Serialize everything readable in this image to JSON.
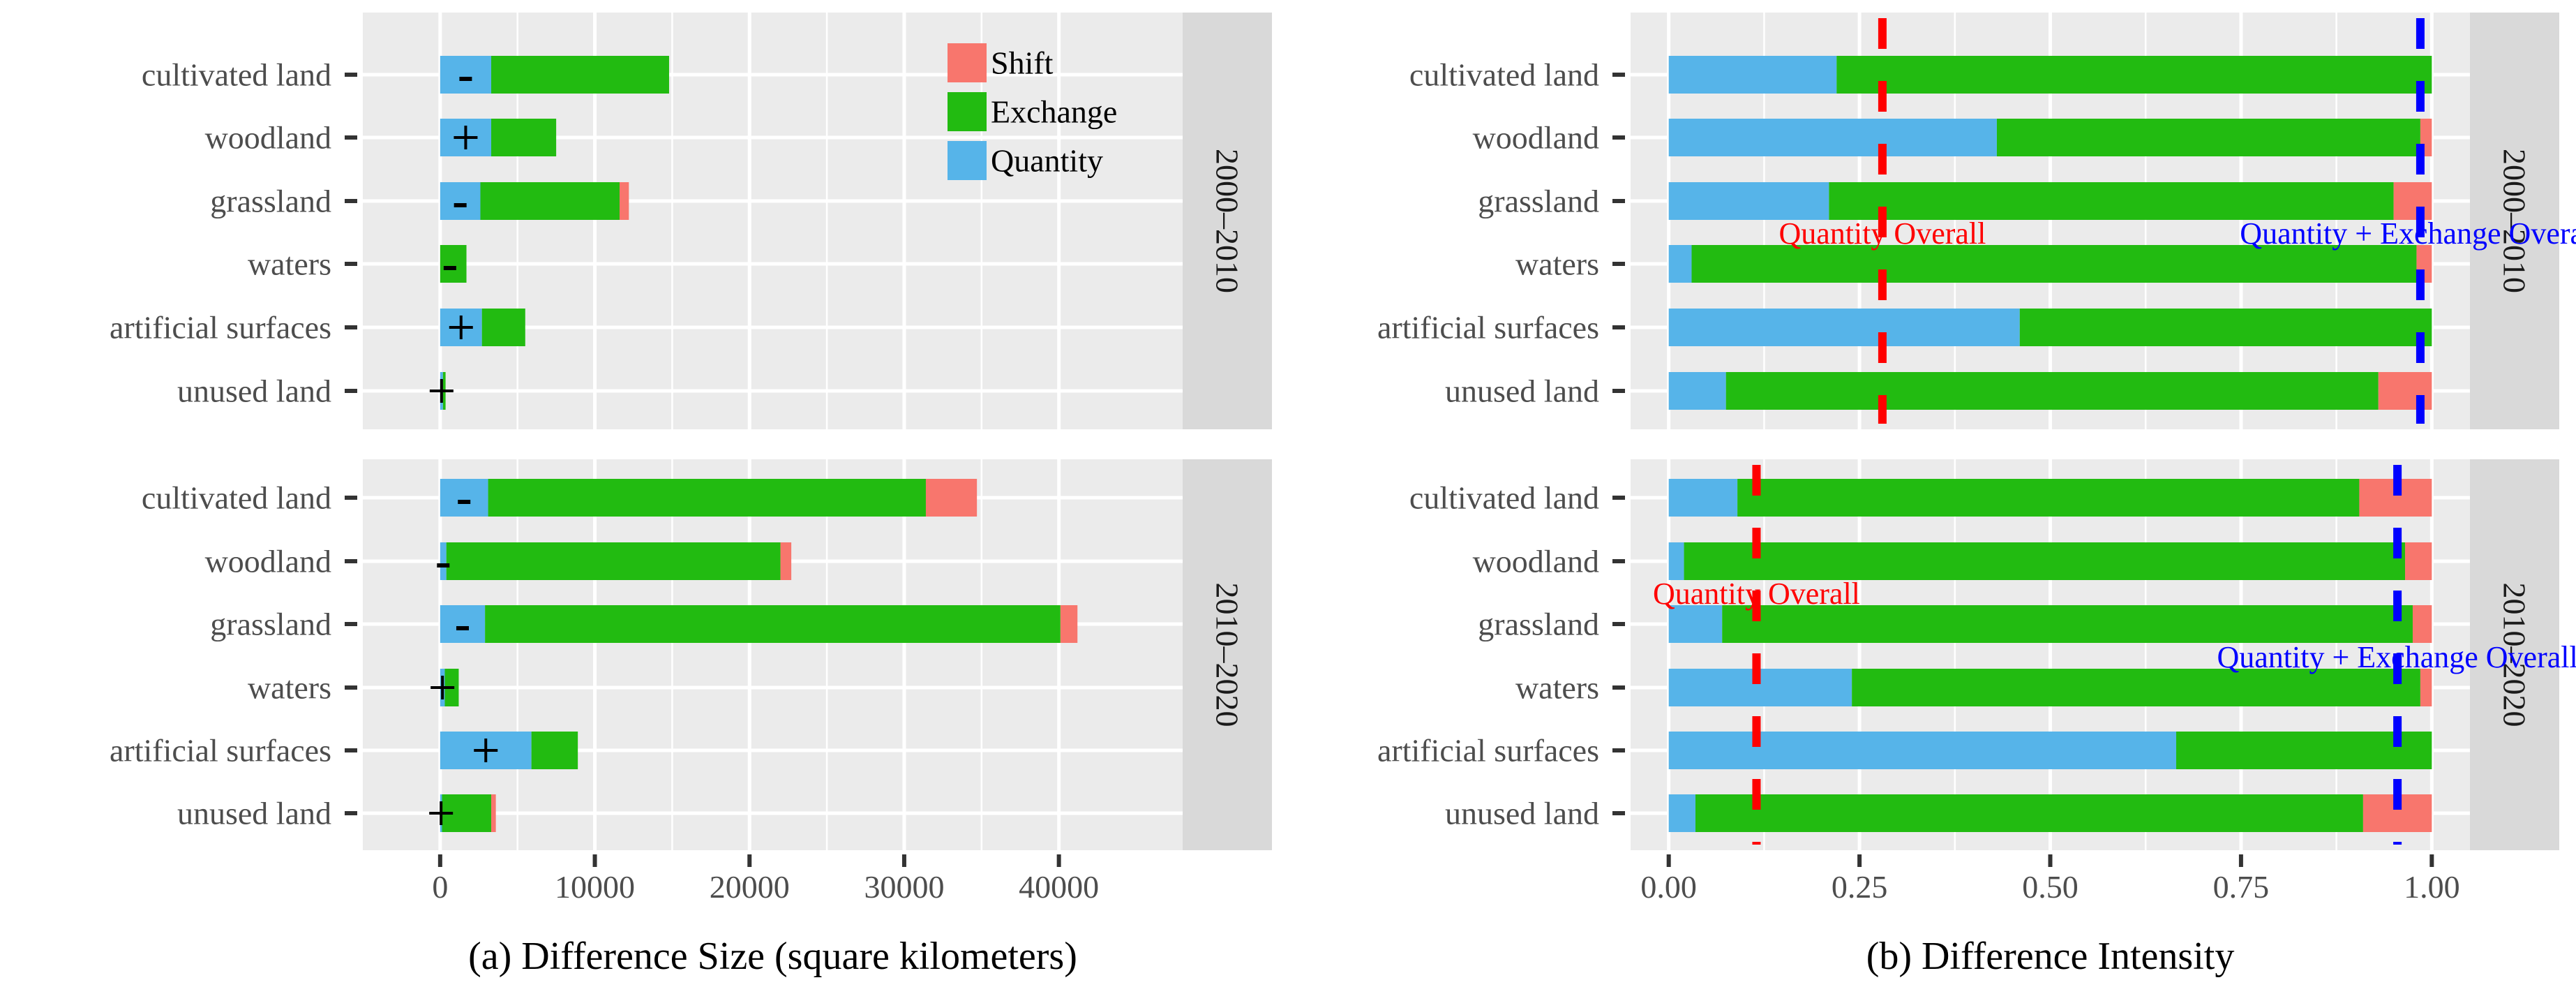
{
  "colors": {
    "shift": "#F8766D",
    "exchange": "#22BB11",
    "quantity": "#56B4E9",
    "panel_bg": "#EBEBEB",
    "grid": "#FFFFFF",
    "strip_bg": "#D9D9D9",
    "text": "#4D4D4D",
    "quantity_overall": "#FF0000",
    "qe_overall": "#0000FF"
  },
  "chart_data": [
    {
      "id": "a",
      "type": "bar",
      "orientation": "horizontal",
      "stacked": true,
      "xlabel": "(a) Difference Size (square kilometers)",
      "xlim": [
        -5000,
        48000
      ],
      "xticks": [
        0,
        10000,
        20000,
        30000,
        40000
      ],
      "xtick_labels": [
        "0",
        "10000",
        "20000",
        "30000",
        "40000"
      ],
      "legend": {
        "position": "top-right",
        "entries": [
          {
            "key": "shift",
            "label": "Shift"
          },
          {
            "key": "exchange",
            "label": "Exchange"
          },
          {
            "key": "quantity",
            "label": "Quantity"
          }
        ]
      },
      "categories": [
        "cultivated land",
        "woodland",
        "grassland",
        "waters",
        "artificial surfaces",
        "unused land"
      ],
      "facets": [
        {
          "label": "2000–2010",
          "series": [
            {
              "name": "Quantity",
              "values": [
                3300,
                3300,
                2600,
                0,
                2700,
                180
              ]
            },
            {
              "name": "Exchange",
              "values": [
                11500,
                4200,
                9000,
                1700,
                2800,
                170
              ]
            },
            {
              "name": "Shift",
              "values": [
                0,
                0,
                600,
                0,
                0,
                0
              ]
            }
          ],
          "signs": [
            "-",
            "+",
            "-",
            "-",
            "+",
            "+"
          ]
        },
        {
          "label": "2010–2020",
          "series": [
            {
              "name": "Quantity",
              "values": [
                3100,
                400,
                2900,
                300,
                5900,
                120
              ]
            },
            {
              "name": "Exchange",
              "values": [
                28300,
                21600,
                37200,
                900,
                3000,
                3180
              ]
            },
            {
              "name": "Shift",
              "values": [
                3300,
                700,
                1100,
                0,
                0,
                300
              ]
            }
          ],
          "signs": [
            "-",
            "-",
            "-",
            "+",
            "+",
            "+"
          ]
        }
      ]
    },
    {
      "id": "b",
      "type": "bar",
      "orientation": "horizontal",
      "stacked": true,
      "xlabel": "(b) Difference Intensity",
      "xlim": [
        -0.05,
        1.05
      ],
      "xticks": [
        0,
        0.25,
        0.5,
        0.75,
        1
      ],
      "xtick_labels": [
        "0.00",
        "0.25",
        "0.50",
        "0.75",
        "1.00"
      ],
      "categories": [
        "cultivated land",
        "woodland",
        "grassland",
        "waters",
        "artificial surfaces",
        "unused land"
      ],
      "facets": [
        {
          "label": "2000–2010",
          "series": [
            {
              "name": "Quantity",
              "values": [
                0.22,
                0.43,
                0.21,
                0.03,
                0.46,
                0.075
              ]
            },
            {
              "name": "Exchange",
              "values": [
                0.78,
                0.555,
                0.74,
                0.95,
                0.54,
                0.855
              ]
            },
            {
              "name": "Shift",
              "values": [
                0,
                0.015,
                0.05,
                0.02,
                0,
                0.07
              ]
            }
          ],
          "lines": [
            {
              "name": "Quantity Overall",
              "value": 0.28,
              "label": "Quantity Overall",
              "label_row": 3
            },
            {
              "name": "Quantity + Exchange Overall",
              "value": 0.985,
              "label": "Quantity + Exchange Overall",
              "label_row": 3
            }
          ]
        },
        {
          "label": "2010–2020",
          "series": [
            {
              "name": "Quantity",
              "values": [
                0.09,
                0.02,
                0.07,
                0.24,
                0.665,
                0.035
              ]
            },
            {
              "name": "Exchange",
              "values": [
                0.815,
                0.945,
                0.905,
                0.745,
                0.335,
                0.875
              ]
            },
            {
              "name": "Shift",
              "values": [
                0.095,
                0.035,
                0.025,
                0.015,
                0,
                0.09
              ]
            }
          ],
          "lines": [
            {
              "name": "Quantity Overall",
              "value": 0.115,
              "label": "Quantity Overall",
              "label_row": 2
            },
            {
              "name": "Quantity + Exchange Overall",
              "value": 0.955,
              "label": "Quantity + Exchange Overall",
              "label_row": 3
            }
          ]
        }
      ]
    }
  ]
}
